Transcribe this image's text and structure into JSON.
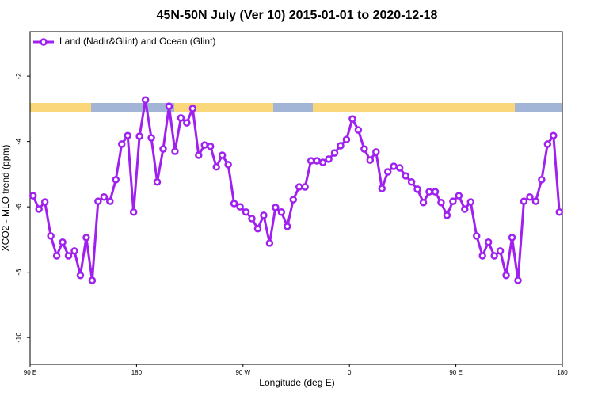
{
  "chart_data": {
    "type": "line",
    "title": "45N-50N July (Ver 10)   2015-01-01 to 2020-12-18",
    "xlabel": "Longitude (deg E)",
    "ylabel": "XCO2 - MLO trend (ppm)",
    "x": [
      92.5,
      97.5,
      102.5,
      107.5,
      112.5,
      117.5,
      122.5,
      127.5,
      132.5,
      137.5,
      142.5,
      147.5,
      152.5,
      157.5,
      162.5,
      167.5,
      172.5,
      177.5,
      182.5,
      187.5,
      192.5,
      197.5,
      202.5,
      207.5,
      212.5,
      217.5,
      222.5,
      227.5,
      232.5,
      237.5,
      242.5,
      247.5,
      252.5,
      257.5,
      262.5,
      267.5,
      272.5,
      277.5,
      282.5,
      287.5,
      292.5,
      297.5,
      302.5,
      307.5,
      312.5,
      317.5,
      322.5,
      327.5,
      332.5,
      337.5,
      342.5,
      347.5,
      352.5,
      357.5,
      362.5,
      367.5,
      372.5,
      377.5,
      382.5,
      387.5,
      392.5,
      397.5,
      402.5,
      407.5,
      412.5,
      417.5,
      422.5,
      427.5,
      432.5,
      437.5,
      442.5,
      447.5,
      452.5,
      457.5,
      462.5,
      467.5,
      472.5,
      477.5,
      482.5,
      487.5,
      492.5,
      497.5,
      502.5,
      507.5,
      512.5,
      517.5,
      522.5,
      527.5,
      532.5,
      537.5
    ],
    "series": [
      {
        "name": "Land (Nadir&Glint) and Ocean (Glint)",
        "color": "#a020f0",
        "values": [
          -5.66,
          -6.07,
          -5.85,
          -6.89,
          -7.5,
          -7.08,
          -7.5,
          -7.35,
          -8.1,
          -6.94,
          -8.25,
          -5.83,
          -5.7,
          -5.83,
          -5.17,
          -4.08,
          -3.82,
          -6.16,
          -3.84,
          -2.73,
          -3.89,
          -5.24,
          -4.23,
          -2.92,
          -4.3,
          -3.28,
          -3.43,
          -2.99,
          -4.42,
          -4.11,
          -4.15,
          -4.78,
          -4.42,
          -4.71,
          -5.9,
          -6.0,
          -6.16,
          -6.36,
          -6.67,
          -6.26,
          -7.11,
          -6.02,
          -6.16,
          -6.6,
          -5.78,
          -5.39,
          -5.39,
          -4.59,
          -4.59,
          -4.64,
          -4.54,
          -4.35,
          -4.13,
          -3.94,
          -3.31,
          -3.65,
          -4.23,
          -4.57,
          -4.32,
          -5.44,
          -4.93,
          -4.76,
          -4.81,
          -5.05,
          -5.24,
          -5.46,
          -5.87,
          -5.54,
          -5.54,
          -5.87,
          -6.26,
          -5.83,
          -5.66,
          -6.07,
          -5.85,
          -6.89,
          -7.5,
          -7.08,
          -7.5,
          -7.35,
          -8.1,
          -6.94,
          -8.25,
          -5.83,
          -5.7,
          -5.83,
          -5.17,
          -4.08,
          -3.82,
          -6.16
        ]
      }
    ],
    "xlim": [
      90,
      540
    ],
    "xticks": [
      {
        "value": 90,
        "label": "90 E"
      },
      180,
      {
        "value": 270,
        "label": "90 W"
      },
      {
        "value": 360,
        "label": "0"
      },
      {
        "value": 450,
        "label": "90 E"
      },
      {
        "value": 540,
        "label": "180"
      }
    ],
    "ylim": [
      -10.82,
      -0.64
    ],
    "yticks": [
      -10,
      -8,
      -6,
      -4,
      -2
    ],
    "legend": "upper left"
  }
}
